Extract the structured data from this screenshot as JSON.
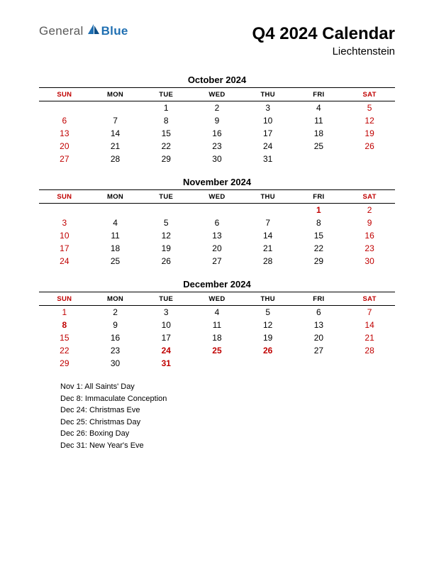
{
  "logo": {
    "general": "General",
    "blue": "Blue"
  },
  "header": {
    "title": "Q4 2024 Calendar",
    "subtitle": "Liechtenstein"
  },
  "colors": {
    "weekend": "#c00000",
    "text": "#000000",
    "logo_gray": "#5a5a5a",
    "logo_blue": "#1f6fb2",
    "background": "#ffffff"
  },
  "day_headers": [
    "SUN",
    "MON",
    "TUE",
    "WED",
    "THU",
    "FRI",
    "SAT"
  ],
  "months": [
    {
      "title": "October 2024",
      "weeks": [
        [
          null,
          null,
          {
            "n": 1
          },
          {
            "n": 2
          },
          {
            "n": 3
          },
          {
            "n": 4
          },
          {
            "n": 5,
            "w": true
          }
        ],
        [
          {
            "n": 6,
            "w": true
          },
          {
            "n": 7
          },
          {
            "n": 8
          },
          {
            "n": 9
          },
          {
            "n": 10
          },
          {
            "n": 11
          },
          {
            "n": 12,
            "w": true
          }
        ],
        [
          {
            "n": 13,
            "w": true
          },
          {
            "n": 14
          },
          {
            "n": 15
          },
          {
            "n": 16
          },
          {
            "n": 17
          },
          {
            "n": 18
          },
          {
            "n": 19,
            "w": true
          }
        ],
        [
          {
            "n": 20,
            "w": true
          },
          {
            "n": 21
          },
          {
            "n": 22
          },
          {
            "n": 23
          },
          {
            "n": 24
          },
          {
            "n": 25
          },
          {
            "n": 26,
            "w": true
          }
        ],
        [
          {
            "n": 27,
            "w": true
          },
          {
            "n": 28
          },
          {
            "n": 29
          },
          {
            "n": 30
          },
          {
            "n": 31
          },
          null,
          null
        ]
      ]
    },
    {
      "title": "November 2024",
      "weeks": [
        [
          null,
          null,
          null,
          null,
          null,
          {
            "n": 1,
            "h": true
          },
          {
            "n": 2,
            "w": true
          }
        ],
        [
          {
            "n": 3,
            "w": true
          },
          {
            "n": 4
          },
          {
            "n": 5
          },
          {
            "n": 6
          },
          {
            "n": 7
          },
          {
            "n": 8
          },
          {
            "n": 9,
            "w": true
          }
        ],
        [
          {
            "n": 10,
            "w": true
          },
          {
            "n": 11
          },
          {
            "n": 12
          },
          {
            "n": 13
          },
          {
            "n": 14
          },
          {
            "n": 15
          },
          {
            "n": 16,
            "w": true
          }
        ],
        [
          {
            "n": 17,
            "w": true
          },
          {
            "n": 18
          },
          {
            "n": 19
          },
          {
            "n": 20
          },
          {
            "n": 21
          },
          {
            "n": 22
          },
          {
            "n": 23,
            "w": true
          }
        ],
        [
          {
            "n": 24,
            "w": true
          },
          {
            "n": 25
          },
          {
            "n": 26
          },
          {
            "n": 27
          },
          {
            "n": 28
          },
          {
            "n": 29
          },
          {
            "n": 30,
            "w": true
          }
        ]
      ]
    },
    {
      "title": "December 2024",
      "weeks": [
        [
          {
            "n": 1,
            "w": true
          },
          {
            "n": 2
          },
          {
            "n": 3
          },
          {
            "n": 4
          },
          {
            "n": 5
          },
          {
            "n": 6
          },
          {
            "n": 7,
            "w": true
          }
        ],
        [
          {
            "n": 8,
            "h": true
          },
          {
            "n": 9
          },
          {
            "n": 10
          },
          {
            "n": 11
          },
          {
            "n": 12
          },
          {
            "n": 13
          },
          {
            "n": 14,
            "w": true
          }
        ],
        [
          {
            "n": 15,
            "w": true
          },
          {
            "n": 16
          },
          {
            "n": 17
          },
          {
            "n": 18
          },
          {
            "n": 19
          },
          {
            "n": 20
          },
          {
            "n": 21,
            "w": true
          }
        ],
        [
          {
            "n": 22,
            "w": true
          },
          {
            "n": 23
          },
          {
            "n": 24,
            "h": true
          },
          {
            "n": 25,
            "h": true
          },
          {
            "n": 26,
            "h": true
          },
          {
            "n": 27
          },
          {
            "n": 28,
            "w": true
          }
        ],
        [
          {
            "n": 29,
            "w": true
          },
          {
            "n": 30
          },
          {
            "n": 31,
            "h": true
          },
          null,
          null,
          null,
          null
        ]
      ]
    }
  ],
  "holidays": [
    "Nov 1: All Saints' Day",
    "Dec 8: Immaculate Conception",
    "Dec 24: Christmas Eve",
    "Dec 25: Christmas Day",
    "Dec 26: Boxing Day",
    "Dec 31: New Year's Eve"
  ]
}
